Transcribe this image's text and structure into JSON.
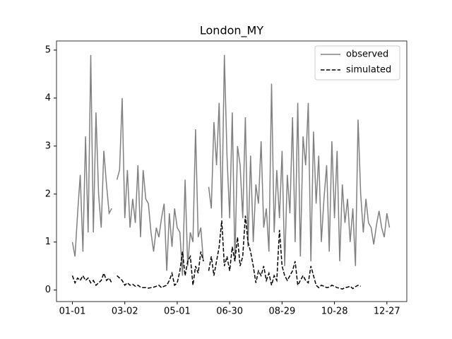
{
  "chart_data": {
    "type": "line",
    "title": "London_MY",
    "x": [
      0,
      3,
      6,
      9,
      12,
      15,
      18,
      21,
      24,
      27,
      30,
      33,
      36,
      39,
      42,
      45,
      48,
      51,
      54,
      57,
      60,
      63,
      66,
      69,
      72,
      75,
      78,
      81,
      84,
      87,
      90,
      93,
      96,
      99,
      102,
      105,
      108,
      111,
      114,
      117,
      120,
      123,
      126,
      129,
      132,
      135,
      138,
      141,
      144,
      147,
      150,
      153,
      156,
      159,
      162,
      165,
      168,
      171,
      174,
      177,
      180,
      183,
      186,
      189,
      192,
      195,
      198,
      201,
      204,
      207,
      210,
      213,
      216,
      219,
      222,
      225,
      228,
      231,
      234,
      237,
      240,
      243,
      246,
      249,
      252,
      255,
      258,
      261,
      264,
      267,
      270,
      273,
      276,
      279,
      282,
      285,
      288,
      291,
      294,
      297,
      300,
      303,
      306,
      309,
      312,
      315,
      318,
      321,
      324,
      327,
      330,
      333,
      336,
      339,
      342,
      345,
      348,
      351,
      354,
      357,
      360,
      363
    ],
    "series": [
      {
        "name": "observed",
        "color": "#808080",
        "dash": "solid",
        "values": [
          1.0,
          0.7,
          1.6,
          2.4,
          0.8,
          3.2,
          1.2,
          4.9,
          1.2,
          3.7,
          2.0,
          1.3,
          2.9,
          2.2,
          1.6,
          1.7,
          null,
          2.3,
          2.5,
          4.0,
          1.5,
          2.5,
          1.3,
          1.9,
          1.4,
          2.6,
          1.1,
          2.5,
          1.9,
          1.8,
          1.2,
          0.8,
          1.3,
          1.1,
          1.5,
          1.8,
          0.4,
          1.6,
          0.9,
          1.7,
          1.3,
          1.2,
          0.3,
          2.3,
          0.5,
          1.2,
          1.0,
          3.35,
          1.1,
          1.3,
          0.6,
          null,
          2.15,
          1.7,
          3.5,
          2.6,
          3.9,
          1.5,
          4.9,
          2.8,
          1.5,
          3.7,
          0.6,
          3.0,
          2.6,
          1.5,
          3.6,
          0.9,
          2.8,
          1.0,
          2.2,
          1.8,
          3.1,
          1.3,
          1.7,
          0.8,
          4.3,
          1.2,
          2.5,
          1.5,
          2.9,
          0.5,
          2.4,
          1.6,
          3.6,
          1.0,
          3.9,
          0.7,
          3.2,
          2.6,
          3.9,
          0.6,
          3.3,
          1.8,
          2.8,
          1.0,
          1.9,
          2.6,
          0.8,
          3.1,
          1.5,
          2.9,
          0.6,
          2.2,
          1.4,
          1.9,
          1.0,
          1.7,
          0.5,
          3.55,
          2.0,
          1.2,
          1.9,
          1.4,
          1.3,
          0.95,
          1.35,
          1.65,
          1.3,
          1.1,
          1.6,
          1.3
        ]
      },
      {
        "name": "simulated",
        "color": "#000000",
        "dash": "dashed",
        "values": [
          0.3,
          0.15,
          0.25,
          0.2,
          0.3,
          0.2,
          0.25,
          0.15,
          0.2,
          0.1,
          0.15,
          0.2,
          0.35,
          0.2,
          0.25,
          0.15,
          null,
          0.3,
          0.25,
          0.2,
          0.1,
          0.15,
          0.1,
          0.12,
          0.08,
          0.1,
          0.06,
          0.05,
          0.05,
          0.04,
          0.05,
          0.06,
          0.08,
          0.1,
          0.05,
          0.08,
          0.1,
          0.2,
          0.35,
          0.1,
          0.15,
          0.4,
          0.8,
          0.3,
          0.6,
          0.7,
          0.1,
          0.5,
          0.35,
          0.8,
          0.6,
          null,
          0.4,
          0.7,
          0.3,
          0.6,
          0.9,
          1.45,
          0.5,
          0.7,
          0.4,
          0.9,
          0.6,
          1.1,
          0.5,
          0.7,
          1.55,
          1.0,
          0.8,
          0.5,
          0.15,
          0.4,
          0.3,
          0.5,
          0.2,
          0.35,
          0.1,
          0.3,
          0.2,
          1.25,
          0.5,
          0.3,
          0.2,
          0.3,
          0.4,
          0.6,
          0.1,
          0.2,
          0.3,
          0.2,
          0.15,
          0.5,
          0.3,
          0.1,
          0.05,
          0.1,
          0.08,
          0.05,
          0.06,
          0.1,
          0.08,
          0.05,
          0.04,
          0.02,
          0.05,
          0.06,
          0.08,
          0.03,
          0.07,
          0.1,
          0.08,
          null,
          null,
          null,
          null,
          null,
          null,
          null,
          null,
          null,
          null,
          null
        ]
      }
    ],
    "xlim": [
      -18.2,
      382.8
    ],
    "xticks": [
      {
        "value": 0,
        "label": "01-01"
      },
      {
        "value": 60,
        "label": "03-02"
      },
      {
        "value": 120,
        "label": "05-01"
      },
      {
        "value": 180,
        "label": "06-30"
      },
      {
        "value": 240,
        "label": "08-29"
      },
      {
        "value": 300,
        "label": "10-28"
      },
      {
        "value": 360,
        "label": "12-27"
      }
    ],
    "ylim": [
      -0.24,
      5.19
    ],
    "yticks": [
      0,
      1,
      2,
      3,
      4,
      5
    ],
    "legend": "upper right"
  }
}
